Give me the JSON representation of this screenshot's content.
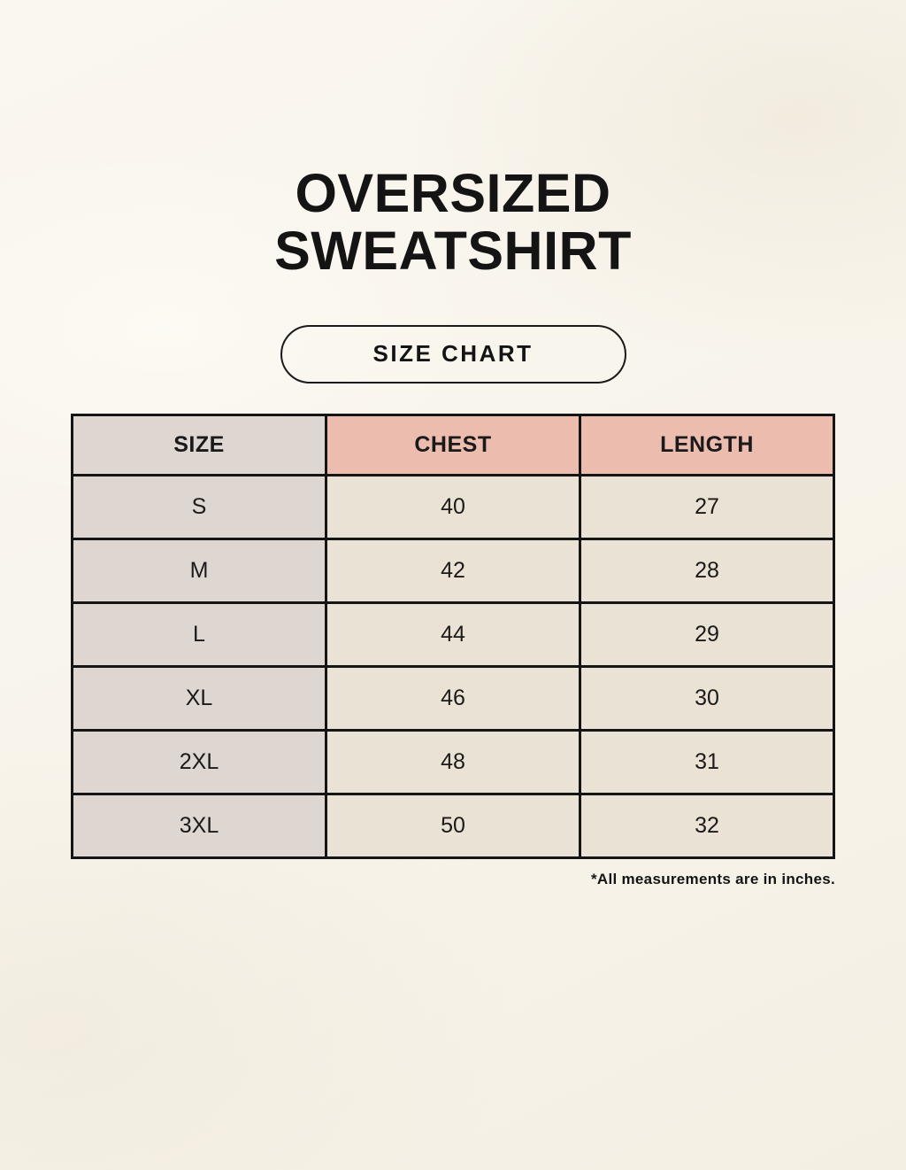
{
  "header": {
    "title_line1": "OVERSIZED",
    "title_line2": "SWEATSHIRT",
    "badge_label": "SIZE CHART"
  },
  "footnote": "*All measurements are in inches.",
  "chart_data": {
    "type": "table",
    "title": "Oversized Sweatshirt Size Chart",
    "unit": "inches",
    "columns": [
      "SIZE",
      "CHEST",
      "LENGTH"
    ],
    "rows": [
      [
        "S",
        "40",
        "27"
      ],
      [
        "M",
        "42",
        "28"
      ],
      [
        "L",
        "44",
        "29"
      ],
      [
        "XL",
        "46",
        "30"
      ],
      [
        "2XL",
        "48",
        "31"
      ],
      [
        "3XL",
        "50",
        "32"
      ]
    ]
  },
  "colors": {
    "background": "#f9f5ec",
    "header_pink": "#ecbcae",
    "size_column_gray": "#ded6d0",
    "data_cell_cream": "#eae2d4",
    "border": "#151515",
    "text": "#141414"
  }
}
